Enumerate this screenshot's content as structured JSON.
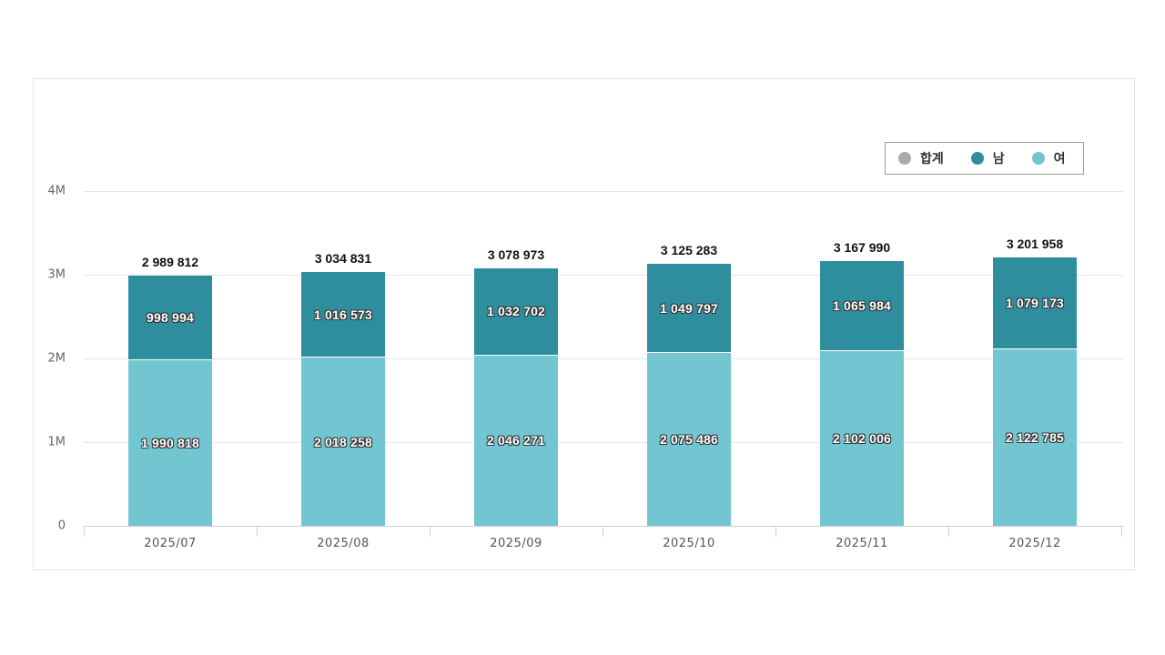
{
  "chart_data": {
    "type": "bar",
    "stacked": true,
    "title": "",
    "xlabel": "",
    "ylabel": "",
    "categories": [
      "2025/07",
      "2025/08",
      "2025/09",
      "2025/10",
      "2025/11",
      "2025/12"
    ],
    "series": [
      {
        "name": "합계",
        "values": [
          2989812,
          3034831,
          3078973,
          3125283,
          3167990,
          3201958
        ],
        "color": "#aaaaaa"
      },
      {
        "name": "남",
        "values": [
          998994,
          1016573,
          1032702,
          1049797,
          1065984,
          1079173
        ],
        "color": "#2e8e9e"
      },
      {
        "name": "여",
        "values": [
          1990818,
          2018258,
          2046271,
          2075486,
          2102006,
          2122785
        ],
        "color": "#72c6d2"
      }
    ],
    "value_labels": {
      "total": [
        "2 989 812",
        "3 034 831",
        "3 078 973",
        "3 125 283",
        "3 167 990",
        "3 201 958"
      ],
      "male": [
        "998 994",
        "1 016 573",
        "1 032 702",
        "1 049 797",
        "1 065 984",
        "1 079 173"
      ],
      "female": [
        "1 990 818",
        "2 018 258",
        "2 046 271",
        "2 075 486",
        "2 102 006",
        "2 122 785"
      ]
    },
    "yticks": [
      "0",
      "1M",
      "2M",
      "3M",
      "4M"
    ],
    "ylim": [
      0,
      4000000
    ],
    "grid": true,
    "legend_position": "top-right"
  },
  "legend": {
    "items": [
      {
        "label": "합계",
        "color": "#aaaaaa"
      },
      {
        "label": "남",
        "color": "#2e8e9e"
      },
      {
        "label": "여",
        "color": "#72c6d2"
      }
    ]
  }
}
